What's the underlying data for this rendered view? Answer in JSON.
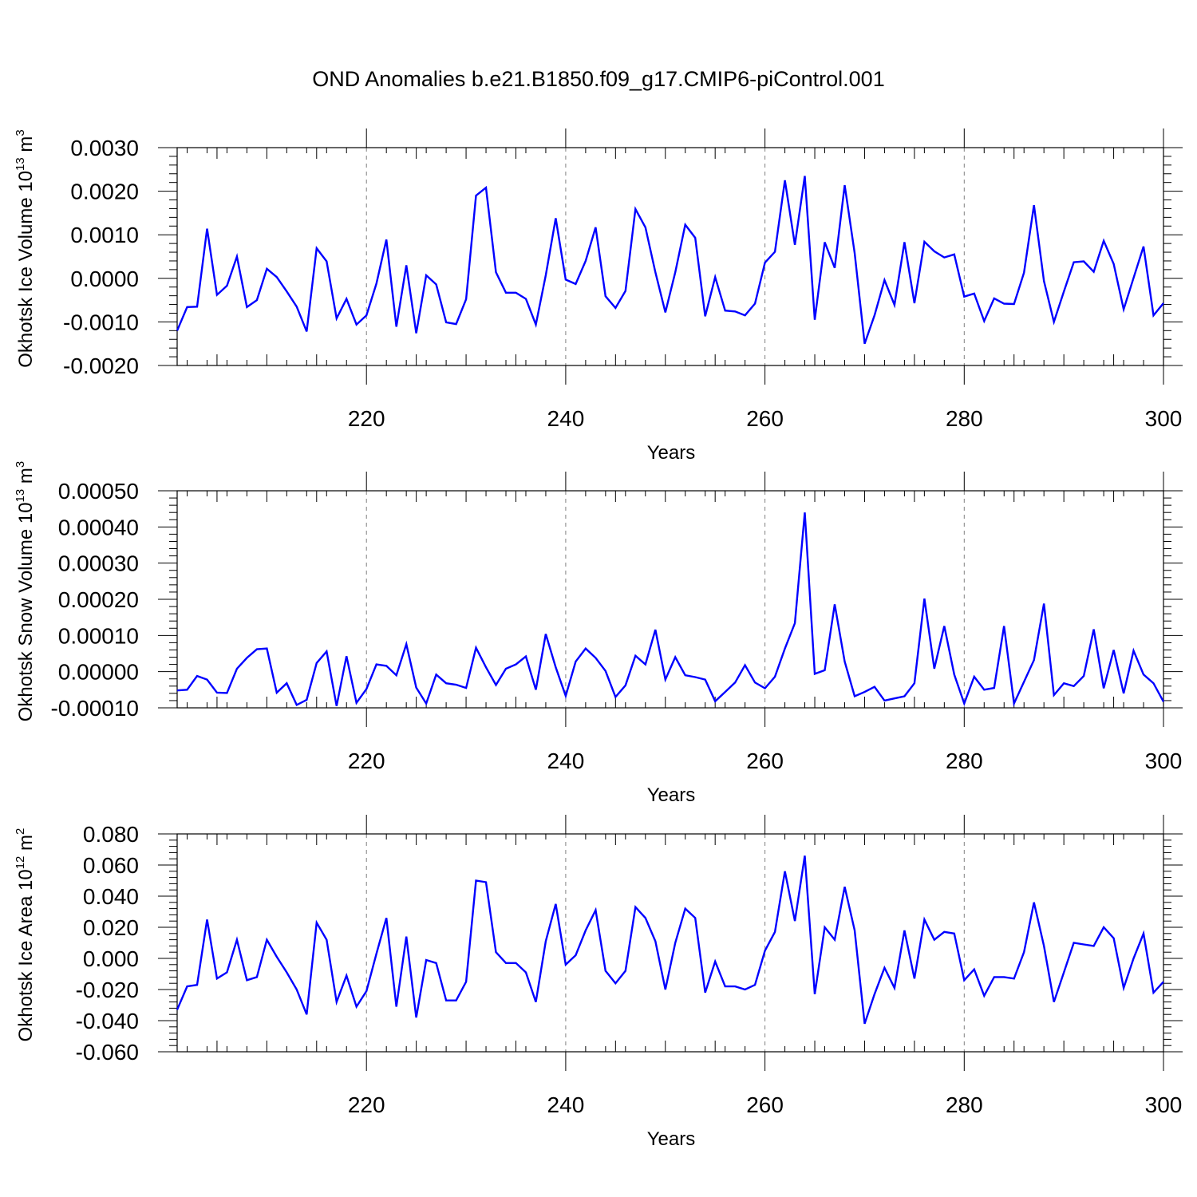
{
  "figure": {
    "title": "OND Anomalies b.e21.B1850.f09_g17.CMIP6-piControl.001"
  },
  "style": {
    "line_color": "#0000ff",
    "axis_color": "#000000",
    "grid_color": "#808080"
  },
  "chart_data": [
    {
      "type": "line",
      "ylabel": "Okhotsk Ice Volume 10",
      "ylabel_sup": "13",
      "ylabel_unit": " m",
      "ylabel_unit_sup": "3",
      "xlabel": "Years",
      "xlim": [
        201,
        300
      ],
      "ylim": [
        -0.002,
        0.003
      ],
      "xticks": [
        220,
        240,
        260,
        280,
        300
      ],
      "xtick_labels": [
        "220",
        "240",
        "260",
        "280",
        "300"
      ],
      "yticks": [
        -0.002,
        -0.001,
        0,
        0.001,
        0.002,
        0.003
      ],
      "ytick_labels": [
        "-0.0020",
        "-0.0010",
        "0.0000",
        "0.0010",
        "0.0020",
        "0.0030"
      ],
      "grid": "vertical dashed at major x ticks",
      "series": [
        {
          "x_start": 201,
          "values": [
            -0.0012,
            -0.00066,
            -0.00065,
            0.00114,
            -0.00038,
            -0.00017,
            0.0005,
            -0.00066,
            -0.0005,
            0.00022,
            3e-05,
            -0.0003,
            -0.00065,
            -0.00122,
            0.00069,
            0.00039,
            -0.00092,
            -0.00047,
            -0.00106,
            -0.00085,
            -0.00012,
            0.00089,
            -0.00111,
            0.0003,
            -0.00126,
            7e-05,
            -0.00014,
            -0.00101,
            -0.00105,
            -0.00048,
            0.0019,
            0.00208,
            0.00014,
            -0.00033,
            -0.00033,
            -0.00047,
            -0.00106,
            7e-05,
            0.00138,
            -3e-05,
            -0.00013,
            0.0004,
            0.00117,
            -0.00041,
            -0.00068,
            -0.00029,
            0.00159,
            0.00117,
            0.00014,
            -0.00078,
            0.00014,
            0.00123,
            0.00093,
            -0.00087,
            3e-05,
            -0.00074,
            -0.00076,
            -0.00085,
            -0.00058,
            0.00036,
            0.00061,
            0.00225,
            0.00077,
            0.00235,
            -0.00095,
            0.00083,
            0.00024,
            0.00214,
            0.00058,
            -0.0015,
            -0.00085,
            -4e-05,
            -0.00061,
            0.00083,
            -0.00057,
            0.00084,
            0.00062,
            0.00048,
            0.00055,
            -0.00042,
            -0.00035,
            -0.00098,
            -0.00046,
            -0.00058,
            -0.00059,
            0.00013,
            0.00168,
            -6e-05,
            -0.001,
            -0.0003,
            0.00037,
            0.00039,
            0.00015,
            0.00086,
            0.00033,
            -0.00071,
            1e-05,
            0.00073,
            -0.00085,
            -0.00057
          ]
        }
      ]
    },
    {
      "type": "line",
      "ylabel": "Okhotsk Snow Volume 10",
      "ylabel_sup": "13",
      "ylabel_unit": " m",
      "ylabel_unit_sup": "3",
      "xlabel": "Years",
      "xlim": [
        201,
        300
      ],
      "ylim": [
        -0.0001,
        0.0005
      ],
      "xticks": [
        220,
        240,
        260,
        280,
        300
      ],
      "xtick_labels": [
        "220",
        "240",
        "260",
        "280",
        "300"
      ],
      "yticks": [
        -0.0001,
        0,
        0.0001,
        0.0002,
        0.0003,
        0.0004,
        0.0005
      ],
      "ytick_labels": [
        "-0.00010",
        "0.00000",
        "0.00010",
        "0.00020",
        "0.00030",
        "0.00040",
        "0.00050"
      ],
      "grid": "vertical dashed at major x ticks",
      "series": [
        {
          "x_start": 201,
          "values": [
            -5.2e-05,
            -5e-05,
            -1.2e-05,
            -2.2e-05,
            -5.8e-05,
            -5.9e-05,
            8e-06,
            3.8e-05,
            6.2e-05,
            6.4e-05,
            -5.8e-05,
            -3.2e-05,
            -9.2e-05,
            -7.8e-05,
            2.4e-05,
            5.6e-05,
            -9.5e-05,
            4.3e-05,
            -8.6e-05,
            -4.8e-05,
            2e-05,
            1.6e-05,
            -1e-05,
            7.6e-05,
            -4.4e-05,
            -8.8e-05,
            -8e-06,
            -3.2e-05,
            -3.6e-05,
            -4.5e-05,
            6.6e-05,
            1.2e-05,
            -3.7e-05,
            8e-06,
            2e-05,
            4.2e-05,
            -5e-05,
            0.000104,
            1.2e-05,
            -6.7e-05,
            2.8e-05,
            6.4e-05,
            3.8e-05,
            2e-06,
            -7e-05,
            -3.8e-05,
            4.4e-05,
            2e-05,
            0.000116,
            -2.2e-05,
            4e-05,
            -1e-05,
            -1.5e-05,
            -2.2e-05,
            -8.2e-05,
            -5.6e-05,
            -3e-05,
            1.8e-05,
            -3e-05,
            -4.6e-05,
            -1.4e-05,
            6.4e-05,
            0.000134,
            0.00044,
            -6e-06,
            4e-06,
            0.000186,
            2.8e-05,
            -6.8e-05,
            -5.6e-05,
            -4.2e-05,
            -8e-05,
            -7.4e-05,
            -6.8e-05,
            -3.2e-05,
            0.000202,
            8e-06,
            0.000126,
            -8e-06,
            -8.8e-05,
            -1.4e-05,
            -5e-05,
            -4.5e-05,
            0.000126,
            -8.8e-05,
            -2.8e-05,
            3.2e-05,
            0.000188,
            -6.5e-05,
            -3.2e-05,
            -4e-05,
            -1.2e-05,
            0.000117,
            -4.6e-05,
            6e-05,
            -6e-05,
            5.8e-05,
            -8e-06,
            -3.2e-05,
            -8.3e-05
          ]
        }
      ]
    },
    {
      "type": "line",
      "ylabel": "Okhotsk Ice Area 10",
      "ylabel_sup": "12",
      "ylabel_unit": " m",
      "ylabel_unit_sup": "2",
      "xlabel": "Years",
      "xlim": [
        201,
        300
      ],
      "ylim": [
        -0.06,
        0.08
      ],
      "xticks": [
        220,
        240,
        260,
        280,
        300
      ],
      "xtick_labels": [
        "220",
        "240",
        "260",
        "280",
        "300"
      ],
      "yticks": [
        -0.06,
        -0.04,
        -0.02,
        0,
        0.02,
        0.04,
        0.06,
        0.08
      ],
      "ytick_labels": [
        "-0.060",
        "-0.040",
        "-0.020",
        "0.000",
        "0.020",
        "0.040",
        "0.060",
        "0.080"
      ],
      "grid": "vertical dashed at major x ticks",
      "series": [
        {
          "x_start": 201,
          "values": [
            -0.033,
            -0.018,
            -0.017,
            0.025,
            -0.013,
            -0.009,
            0.012,
            -0.014,
            -0.012,
            0.012,
            0.001,
            -0.009,
            -0.02,
            -0.036,
            0.023,
            0.012,
            -0.028,
            -0.011,
            -0.031,
            -0.021,
            0.003,
            0.026,
            -0.031,
            0.014,
            -0.038,
            -0.001,
            -0.003,
            -0.027,
            -0.027,
            -0.015,
            0.05,
            0.049,
            0.004,
            -0.003,
            -0.003,
            -0.009,
            -0.028,
            0.011,
            0.035,
            -0.004,
            0.002,
            0.018,
            0.031,
            -0.008,
            -0.016,
            -0.008,
            0.033,
            0.026,
            0.011,
            -0.02,
            0.01,
            0.032,
            0.026,
            -0.022,
            -0.002,
            -0.018,
            -0.018,
            -0.02,
            -0.017,
            0.005,
            0.017,
            0.056,
            0.024,
            0.066,
            -0.023,
            0.02,
            0.012,
            0.046,
            0.018,
            -0.042,
            -0.023,
            -0.006,
            -0.019,
            0.018,
            -0.013,
            0.025,
            0.012,
            0.017,
            0.016,
            -0.014,
            -0.007,
            -0.024,
            -0.012,
            -0.012,
            -0.013,
            0.004,
            0.036,
            0.008,
            -0.028,
            -0.009,
            0.01,
            0.009,
            0.008,
            0.02,
            0.013,
            -0.019,
            0.0,
            0.016,
            -0.022,
            -0.015
          ]
        }
      ]
    }
  ]
}
